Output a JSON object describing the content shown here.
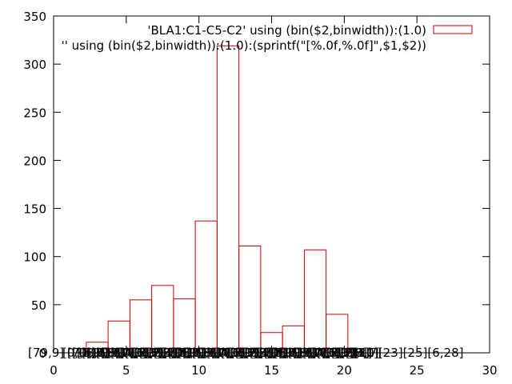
{
  "chart_data": {
    "type": "bar",
    "bin_width": 1.5,
    "x": [
      3.0,
      4.5,
      6.0,
      7.5,
      9.0,
      10.5,
      12.0,
      13.5,
      15.0,
      16.5,
      18.0,
      19.5
    ],
    "values": [
      11,
      33,
      55,
      70,
      56,
      137,
      319,
      111,
      21,
      28,
      107,
      40
    ],
    "xlim": [
      0,
      30
    ],
    "ylim": [
      0,
      350
    ],
    "x_ticks": [
      0,
      5,
      10,
      15,
      20,
      25,
      30
    ],
    "y_ticks": [
      0,
      50,
      100,
      150,
      200,
      250,
      300,
      350
    ],
    "x_tick_labels": [
      "0",
      "5",
      "10",
      "15",
      "20",
      "25",
      "30"
    ],
    "y_tick_labels": [
      "0",
      "50",
      "100",
      "150",
      "200",
      "250",
      "300",
      "350"
    ],
    "grid": false,
    "legend": [
      {
        "label": "'BLA1:C1-C5-C2' using (bin($2,binwidth)):(1.0)",
        "swatch": "outlined-box",
        "placement": "top-right"
      },
      {
        "label": "'' using (bin($2,binwidth)):(1.0):(sprintf(\"[%.0f,%.0f]\",$1,$2))",
        "placement": "top-right, clipped on left"
      }
    ],
    "point_labels_bottom": {
      "leftmost": "[79,9]",
      "right_visible": "[21][23][25][6,28]",
      "note": "many overlapping sprintf labels along the x-axis"
    },
    "colors": {
      "bar": "#cc0000",
      "axes": "#000000"
    }
  }
}
